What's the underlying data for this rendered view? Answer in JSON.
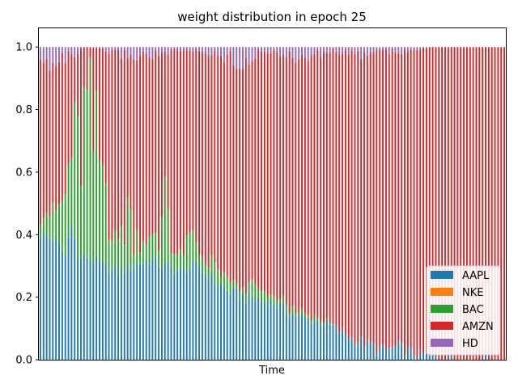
{
  "chart_data": {
    "type": "bar",
    "stacked": true,
    "title": "weight distribution in epoch 25",
    "xlabel": "Time",
    "ylabel": "",
    "ylim": [
      0,
      1.06
    ],
    "yticks": [
      0.0,
      0.2,
      0.4,
      0.6,
      0.8,
      1.0
    ],
    "ytick_labels": [
      "0.0",
      "0.2",
      "0.4",
      "0.6",
      "0.8",
      "1.0"
    ],
    "x_tick_labels_shown": false,
    "num_bars": 150,
    "legend_position": "lower right",
    "series_colors": {
      "AAPL": "#1f77b4",
      "NKE": "#ff7f0e",
      "BAC": "#2ca02c",
      "AMZN": "#d62728",
      "HD": "#9467bd"
    },
    "series_order": [
      "AAPL",
      "NKE",
      "BAC",
      "AMZN",
      "HD"
    ],
    "keyframes": {
      "AAPL": [
        [
          0,
          0.4
        ],
        [
          5,
          0.38
        ],
        [
          8,
          0.33
        ],
        [
          10,
          0.45
        ],
        [
          12,
          0.32
        ],
        [
          15,
          0.33
        ],
        [
          20,
          0.3
        ],
        [
          25,
          0.28
        ],
        [
          30,
          0.3
        ],
        [
          35,
          0.32
        ],
        [
          40,
          0.3
        ],
        [
          45,
          0.28
        ],
        [
          50,
          0.3
        ],
        [
          55,
          0.26
        ],
        [
          60,
          0.22
        ],
        [
          65,
          0.2
        ],
        [
          70,
          0.19
        ],
        [
          75,
          0.18
        ],
        [
          80,
          0.15
        ],
        [
          85,
          0.13
        ],
        [
          90,
          0.12
        ],
        [
          95,
          0.1
        ],
        [
          100,
          0.07
        ],
        [
          105,
          0.05
        ],
        [
          110,
          0.03
        ],
        [
          115,
          0.04
        ],
        [
          120,
          0.02
        ],
        [
          125,
          0.01
        ],
        [
          135,
          0.0
        ],
        [
          149,
          0.0
        ]
      ],
      "NKE": [
        [
          0,
          0.0
        ],
        [
          149,
          0.0
        ]
      ],
      "BAC": [
        [
          0,
          0.1
        ],
        [
          5,
          0.08
        ],
        [
          10,
          0.25
        ],
        [
          15,
          0.45
        ],
        [
          18,
          0.35
        ],
        [
          20,
          0.3
        ],
        [
          25,
          0.08
        ],
        [
          28,
          0.2
        ],
        [
          30,
          0.1
        ],
        [
          35,
          0.07
        ],
        [
          38,
          0.05
        ],
        [
          40,
          0.3
        ],
        [
          42,
          0.08
        ],
        [
          45,
          0.04
        ],
        [
          48,
          0.1
        ],
        [
          50,
          0.05
        ],
        [
          55,
          0.05
        ],
        [
          60,
          0.03
        ],
        [
          65,
          0.02
        ],
        [
          68,
          0.05
        ],
        [
          70,
          0.03
        ],
        [
          75,
          0.02
        ],
        [
          80,
          0.02
        ],
        [
          85,
          0.01
        ],
        [
          90,
          0.01
        ],
        [
          95,
          0.0
        ],
        [
          149,
          0.0
        ]
      ],
      "HD": [
        [
          0,
          0.06
        ],
        [
          5,
          0.04
        ],
        [
          10,
          0.03
        ],
        [
          15,
          0.0
        ],
        [
          20,
          0.01
        ],
        [
          25,
          0.02
        ],
        [
          30,
          0.03
        ],
        [
          40,
          0.02
        ],
        [
          50,
          0.01
        ],
        [
          60,
          0.03
        ],
        [
          65,
          0.05
        ],
        [
          70,
          0.02
        ],
        [
          75,
          0.01
        ],
        [
          80,
          0.04
        ],
        [
          85,
          0.03
        ],
        [
          90,
          0.02
        ],
        [
          95,
          0.01
        ],
        [
          100,
          0.03
        ],
        [
          105,
          0.02
        ],
        [
          110,
          0.01
        ],
        [
          115,
          0.02
        ],
        [
          120,
          0.01
        ],
        [
          125,
          0.0
        ],
        [
          149,
          0.0
        ]
      ]
    }
  }
}
